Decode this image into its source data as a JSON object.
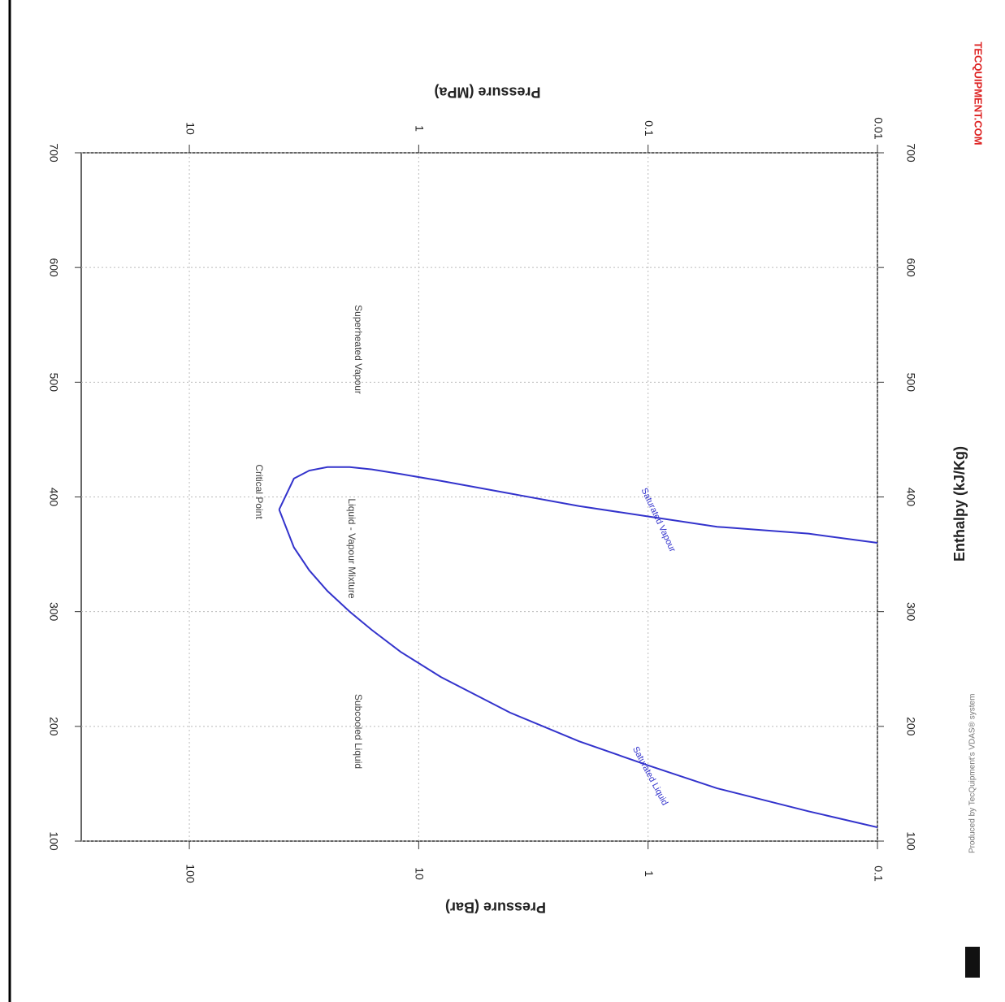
{
  "chart_data": {
    "type": "line",
    "x_label": "Pressure (Bar)",
    "x2_label": "Pressure (MPa)",
    "y_label": "Enthalpy (kJ/Kg)",
    "xlim": [
      0.1,
      296
    ],
    "xticks": [
      100,
      10,
      1,
      0.1
    ],
    "log_x": true,
    "x2lim": [
      0.01,
      29.6
    ],
    "x2ticks": [
      10,
      1,
      0.1,
      0.01
    ],
    "ylim": [
      100,
      700
    ],
    "yticks": [
      100,
      200,
      300,
      400,
      500,
      600,
      700
    ],
    "grid": true,
    "series": [
      {
        "name": "Saturated Liquid",
        "color": "#3333cc",
        "x": [
          0.1,
          0.2,
          0.5,
          1,
          2,
          4,
          8,
          12,
          16,
          20,
          25,
          30,
          35,
          40.6
        ],
        "values": [
          112,
          126,
          146,
          166,
          187,
          212,
          243,
          265,
          284,
          300,
          318,
          336,
          356,
          389
        ]
      },
      {
        "name": "Saturated Vapour",
        "color": "#3333cc",
        "x": [
          0.1,
          0.2,
          0.5,
          1,
          2,
          4,
          8,
          12,
          16,
          20,
          25,
          30,
          35,
          40.6
        ],
        "values": [
          360,
          368,
          374,
          383,
          392,
          403,
          414,
          420,
          424,
          426,
          426,
          423,
          416,
          389
        ]
      }
    ],
    "annotations": [
      "Subcooled Liquid",
      "Liquid - Vapour Mixture",
      "Superheated Vapour",
      "Critical Point"
    ],
    "brand": "TECQUIPMENT.COM",
    "credit": "Produced by TecQuipment's VDAS® system"
  }
}
